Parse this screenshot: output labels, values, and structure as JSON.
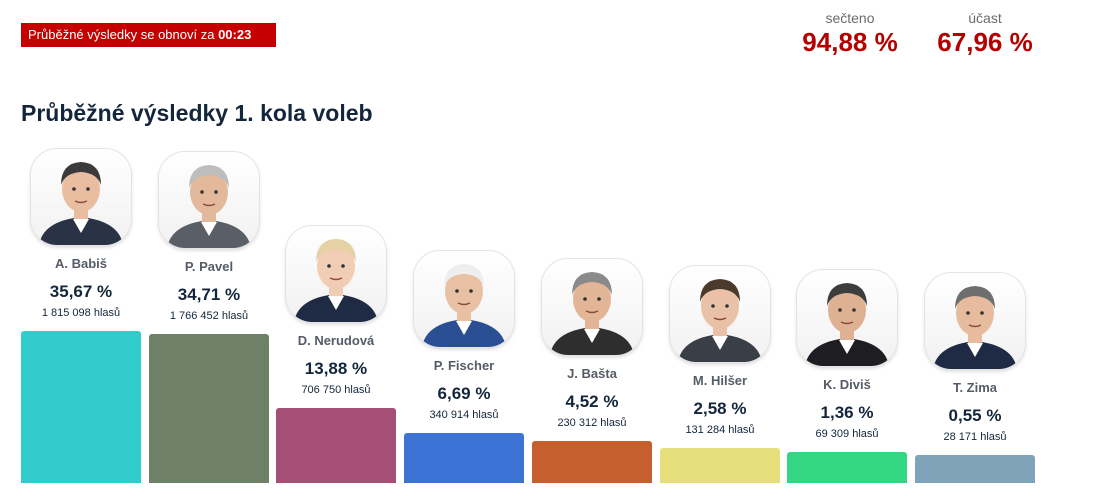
{
  "header": {
    "timer_text": "Průběžné výsledky se obnoví za",
    "timer_value": "00:23",
    "counted_label": "sečteno",
    "counted_value": "94,88 %",
    "turnout_label": "účast",
    "turnout_value": "67,96 %"
  },
  "main": {
    "title": "Průběžné výsledky 1. kola voleb"
  },
  "chart_data": {
    "type": "bar",
    "title": "Průběžné výsledky 1. kola voleb",
    "xlabel": "",
    "ylabel": "",
    "ylim": [
      0,
      35.67
    ],
    "grid": false,
    "categories": [
      "A. Babiš",
      "P. Pavel",
      "D. Nerudová",
      "P. Fischer",
      "J. Bašta",
      "M. Hilšer",
      "K. Diviš",
      "T. Zima"
    ],
    "values": [
      35.67,
      34.71,
      13.88,
      6.69,
      4.52,
      2.58,
      1.36,
      0.55
    ],
    "pct_labels": [
      "35,67 %",
      "34,71 %",
      "13,88 %",
      "6,69 %",
      "4,52 %",
      "2,58 %",
      "1,36 %",
      "0,55 %"
    ],
    "votes_labels": [
      "1 815 098 hlasů",
      "1 766 452 hlasů",
      "706 750 hlasů",
      "340 914 hlasů",
      "230 312 hlasů",
      "131 284 hlasů",
      "69 309 hlasů",
      "28 171 hlasů"
    ],
    "colors": [
      "#33cccc",
      "#6e8168",
      "#a64f77",
      "#3e73d6",
      "#c65e2e",
      "#e6dd7b",
      "#33d683",
      "#7fa4ba"
    ]
  }
}
